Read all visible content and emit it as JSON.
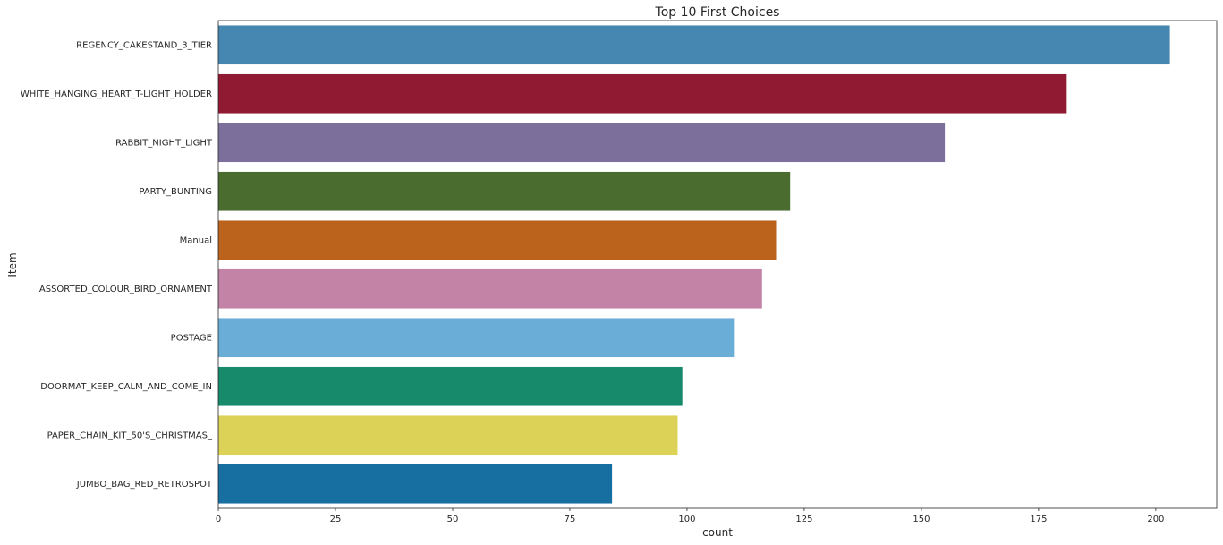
{
  "chart_data": {
    "type": "bar",
    "orientation": "horizontal",
    "title": "Top 10 First Choices",
    "xlabel": "count",
    "ylabel": "Item",
    "xlim": [
      0,
      213
    ],
    "xticks": [
      0,
      25,
      50,
      75,
      100,
      125,
      150,
      175,
      200
    ],
    "grid": false,
    "categories": [
      "REGENCY_CAKESTAND_3_TIER",
      "WHITE_HANGING_HEART_T-LIGHT_HOLDER",
      "RABBIT_NIGHT_LIGHT",
      "PARTY_BUNTING",
      "Manual",
      "ASSORTED_COLOUR_BIRD_ORNAMENT",
      "POSTAGE",
      "DOORMAT_KEEP_CALM_AND_COME_IN",
      "PAPER_CHAIN_KIT_50'S_CHRISTMAS_",
      "JUMBO_BAG_RED_RETROSPOT"
    ],
    "values": [
      203,
      181,
      155,
      122,
      119,
      116,
      110,
      99,
      98,
      84
    ],
    "colors": [
      "#4587b0",
      "#911a33",
      "#7d6f9c",
      "#4a6c2f",
      "#bb621d",
      "#c383a7",
      "#6aaed8",
      "#168a6b",
      "#dbd257",
      "#176ea0"
    ]
  }
}
